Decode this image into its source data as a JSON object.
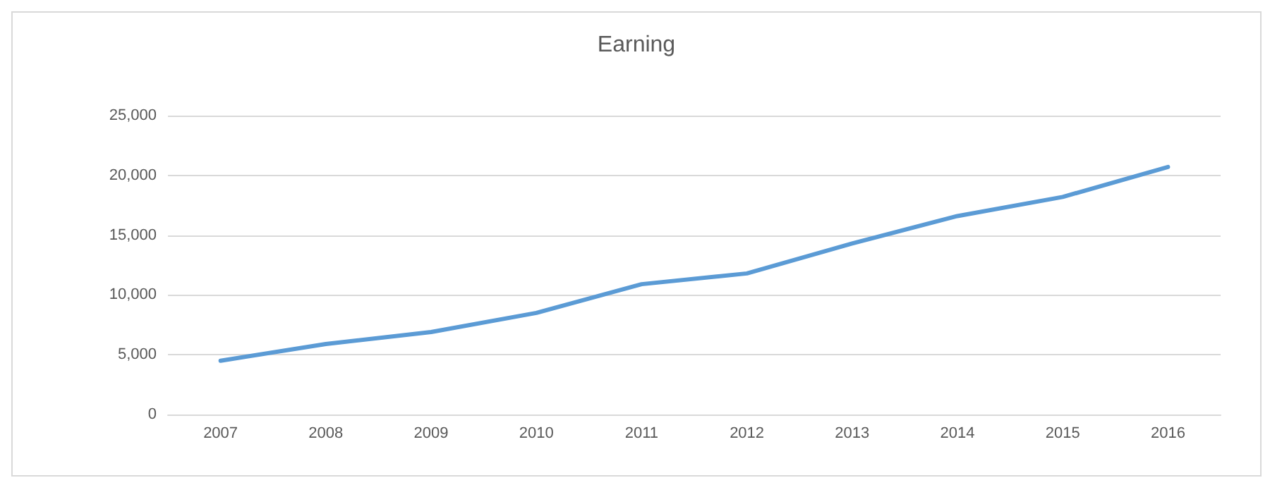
{
  "chart_data": {
    "type": "line",
    "title": "Earning",
    "categories": [
      "2007",
      "2008",
      "2009",
      "2010",
      "2011",
      "2012",
      "2013",
      "2014",
      "2015",
      "2016"
    ],
    "series": [
      {
        "color": "#5b9bd5",
        "values": [
          4500,
          5900,
          6900,
          8500,
          10900,
          11800,
          14300,
          16600,
          18200,
          20700
        ]
      }
    ],
    "ylim": [
      0,
      25000
    ],
    "yticks": [
      0,
      {
        "value": 5000,
        "label": "5,000"
      },
      {
        "value": 10000,
        "label": "10,000"
      },
      {
        "value": 15000,
        "label": "15,000"
      },
      {
        "value": 20000,
        "label": "20,000"
      },
      {
        "value": 25000,
        "label": "25,000"
      }
    ],
    "grid": "y",
    "marker": "none",
    "line_style": "solid"
  }
}
